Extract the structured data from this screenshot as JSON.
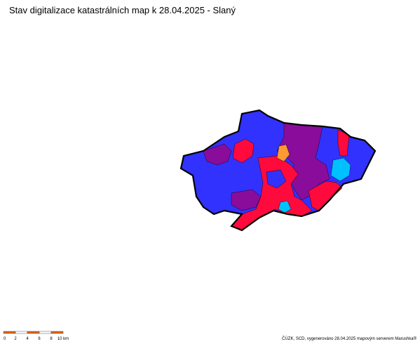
{
  "header": {
    "title": "Stav digitalizace katastrálních map k 28.04.2025 - Slaný"
  },
  "scale_bar": {
    "labels": [
      "0",
      "2",
      "4",
      "6",
      "8",
      "10 km"
    ]
  },
  "footer": {
    "credit": "ČÚZK, SCD, vygenerováno 28.04.2025 mapovým serverem Marushka®"
  }
}
